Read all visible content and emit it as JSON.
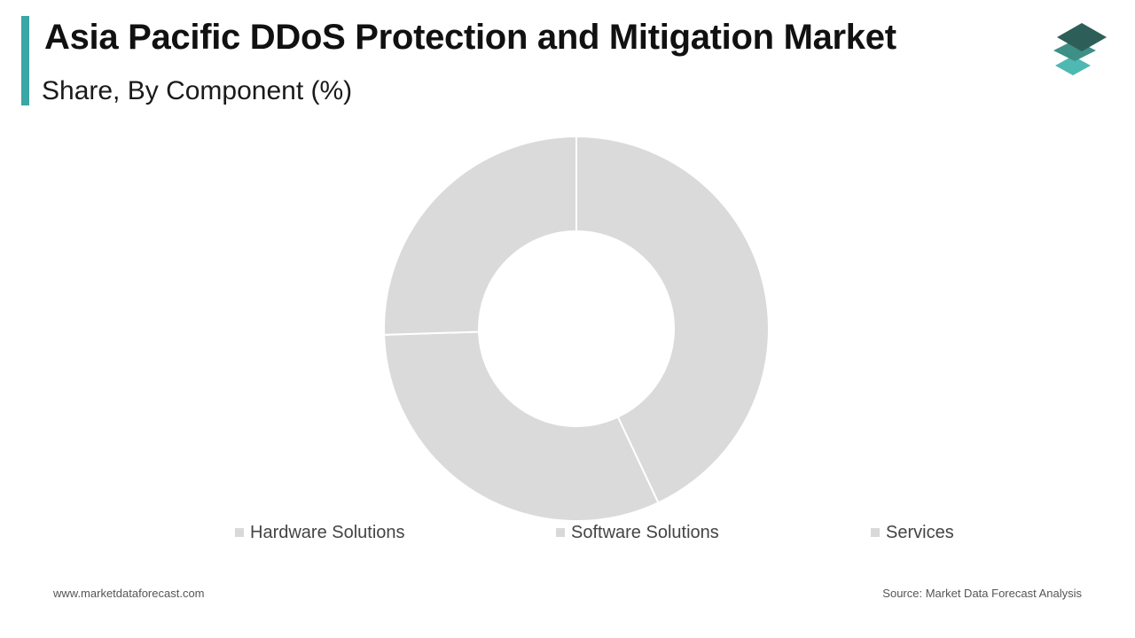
{
  "header": {
    "title": "Asia Pacific DDoS Protection and Mitigation Market",
    "subtitle": "Share, By Component (%)"
  },
  "colors": {
    "accent": "#3aa7a5",
    "logo_top": "#2d5f58",
    "logo_mid": "#3e8f86",
    "logo_bottom": "#4fb8b3",
    "slice_fill": "#dadada",
    "slice_stroke": "#ffffff",
    "legend_swatch": "#d9d9d9"
  },
  "icons": {
    "logo": "stacked-layers-icon"
  },
  "chart_data": {
    "type": "pie",
    "variant": "donut",
    "categories": [
      "Hardware Solutions",
      "Software Solutions",
      "Services"
    ],
    "values": [
      43,
      31.5,
      25.5
    ],
    "unit": "%",
    "start_angle_deg": 0,
    "direction": "clockwise",
    "legend_position": "bottom"
  },
  "legend": {
    "items": [
      {
        "label": "Hardware Solutions"
      },
      {
        "label": "Software Solutions"
      },
      {
        "label": "Services"
      }
    ]
  },
  "footer": {
    "website": "www.marketdataforecast.com",
    "source": "Source: Market Data Forecast Analysis"
  }
}
